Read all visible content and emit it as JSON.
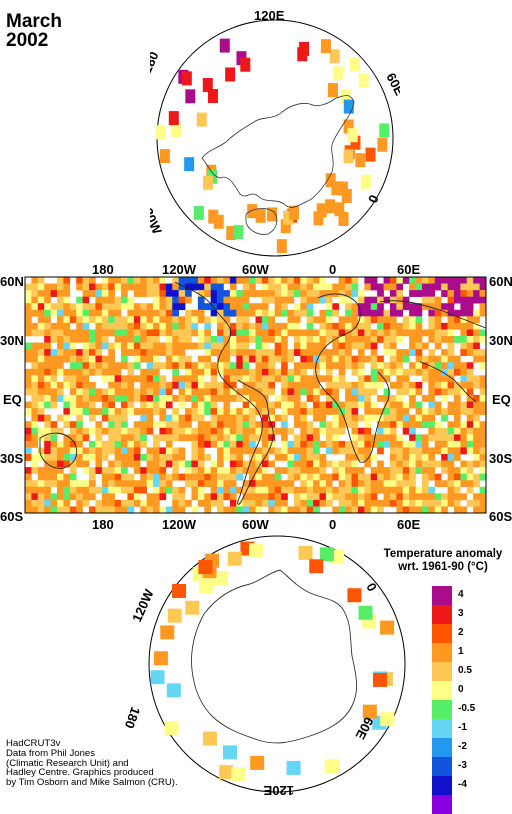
{
  "title": {
    "month": "March",
    "year": "2002"
  },
  "north_polar": {
    "labels": {
      "top": "120E",
      "upper_right": "60E",
      "right": "0",
      "upper_left": "180",
      "left": "120W"
    }
  },
  "main_map": {
    "top_lon_labels": [
      "180",
      "120W",
      "60W",
      "0",
      "60E"
    ],
    "bottom_lon_labels": [
      "180",
      "120W",
      "60W",
      "0",
      "60E"
    ],
    "left_lat_labels": [
      "60N",
      "30N",
      "EQ",
      "30S",
      "60S"
    ],
    "right_lat_labels": [
      "60N",
      "30N",
      "EQ",
      "30S",
      "60S"
    ]
  },
  "south_polar": {
    "labels": {
      "upper_left": "120W",
      "upper_right": "0",
      "lower_right": "60E",
      "lower_left": "180",
      "bottom": "120E"
    }
  },
  "legend": {
    "title_line1": "Temperature anomaly",
    "title_line2": "wrt. 1961-90  (°C)",
    "bins": [
      {
        "color": "#aa0c8c",
        "label": "4"
      },
      {
        "color": "#ee1818",
        "label": "3"
      },
      {
        "color": "#ff5500",
        "label": "2"
      },
      {
        "color": "#ff9922",
        "label": "1"
      },
      {
        "color": "#ffc855",
        "label": "0.5"
      },
      {
        "color": "#ffff88",
        "label": "0"
      },
      {
        "color": "#55ee66",
        "label": "-0.5"
      },
      {
        "color": "#66d6f5",
        "label": "-1"
      },
      {
        "color": "#2299ee",
        "label": "-2"
      },
      {
        "color": "#1155dd",
        "label": "-3"
      },
      {
        "color": "#1111cc",
        "label": "-4"
      },
      {
        "color": "#8800dd",
        "label": ""
      }
    ]
  },
  "credit": {
    "lines": [
      "HadCRUT3v",
      "Data from Phil Jones",
      "(Climatic Research Unit) and",
      "Hadley Centre.  Graphics produced",
      "by Tim Osborn and Mike Salmon (CRU)."
    ]
  }
}
